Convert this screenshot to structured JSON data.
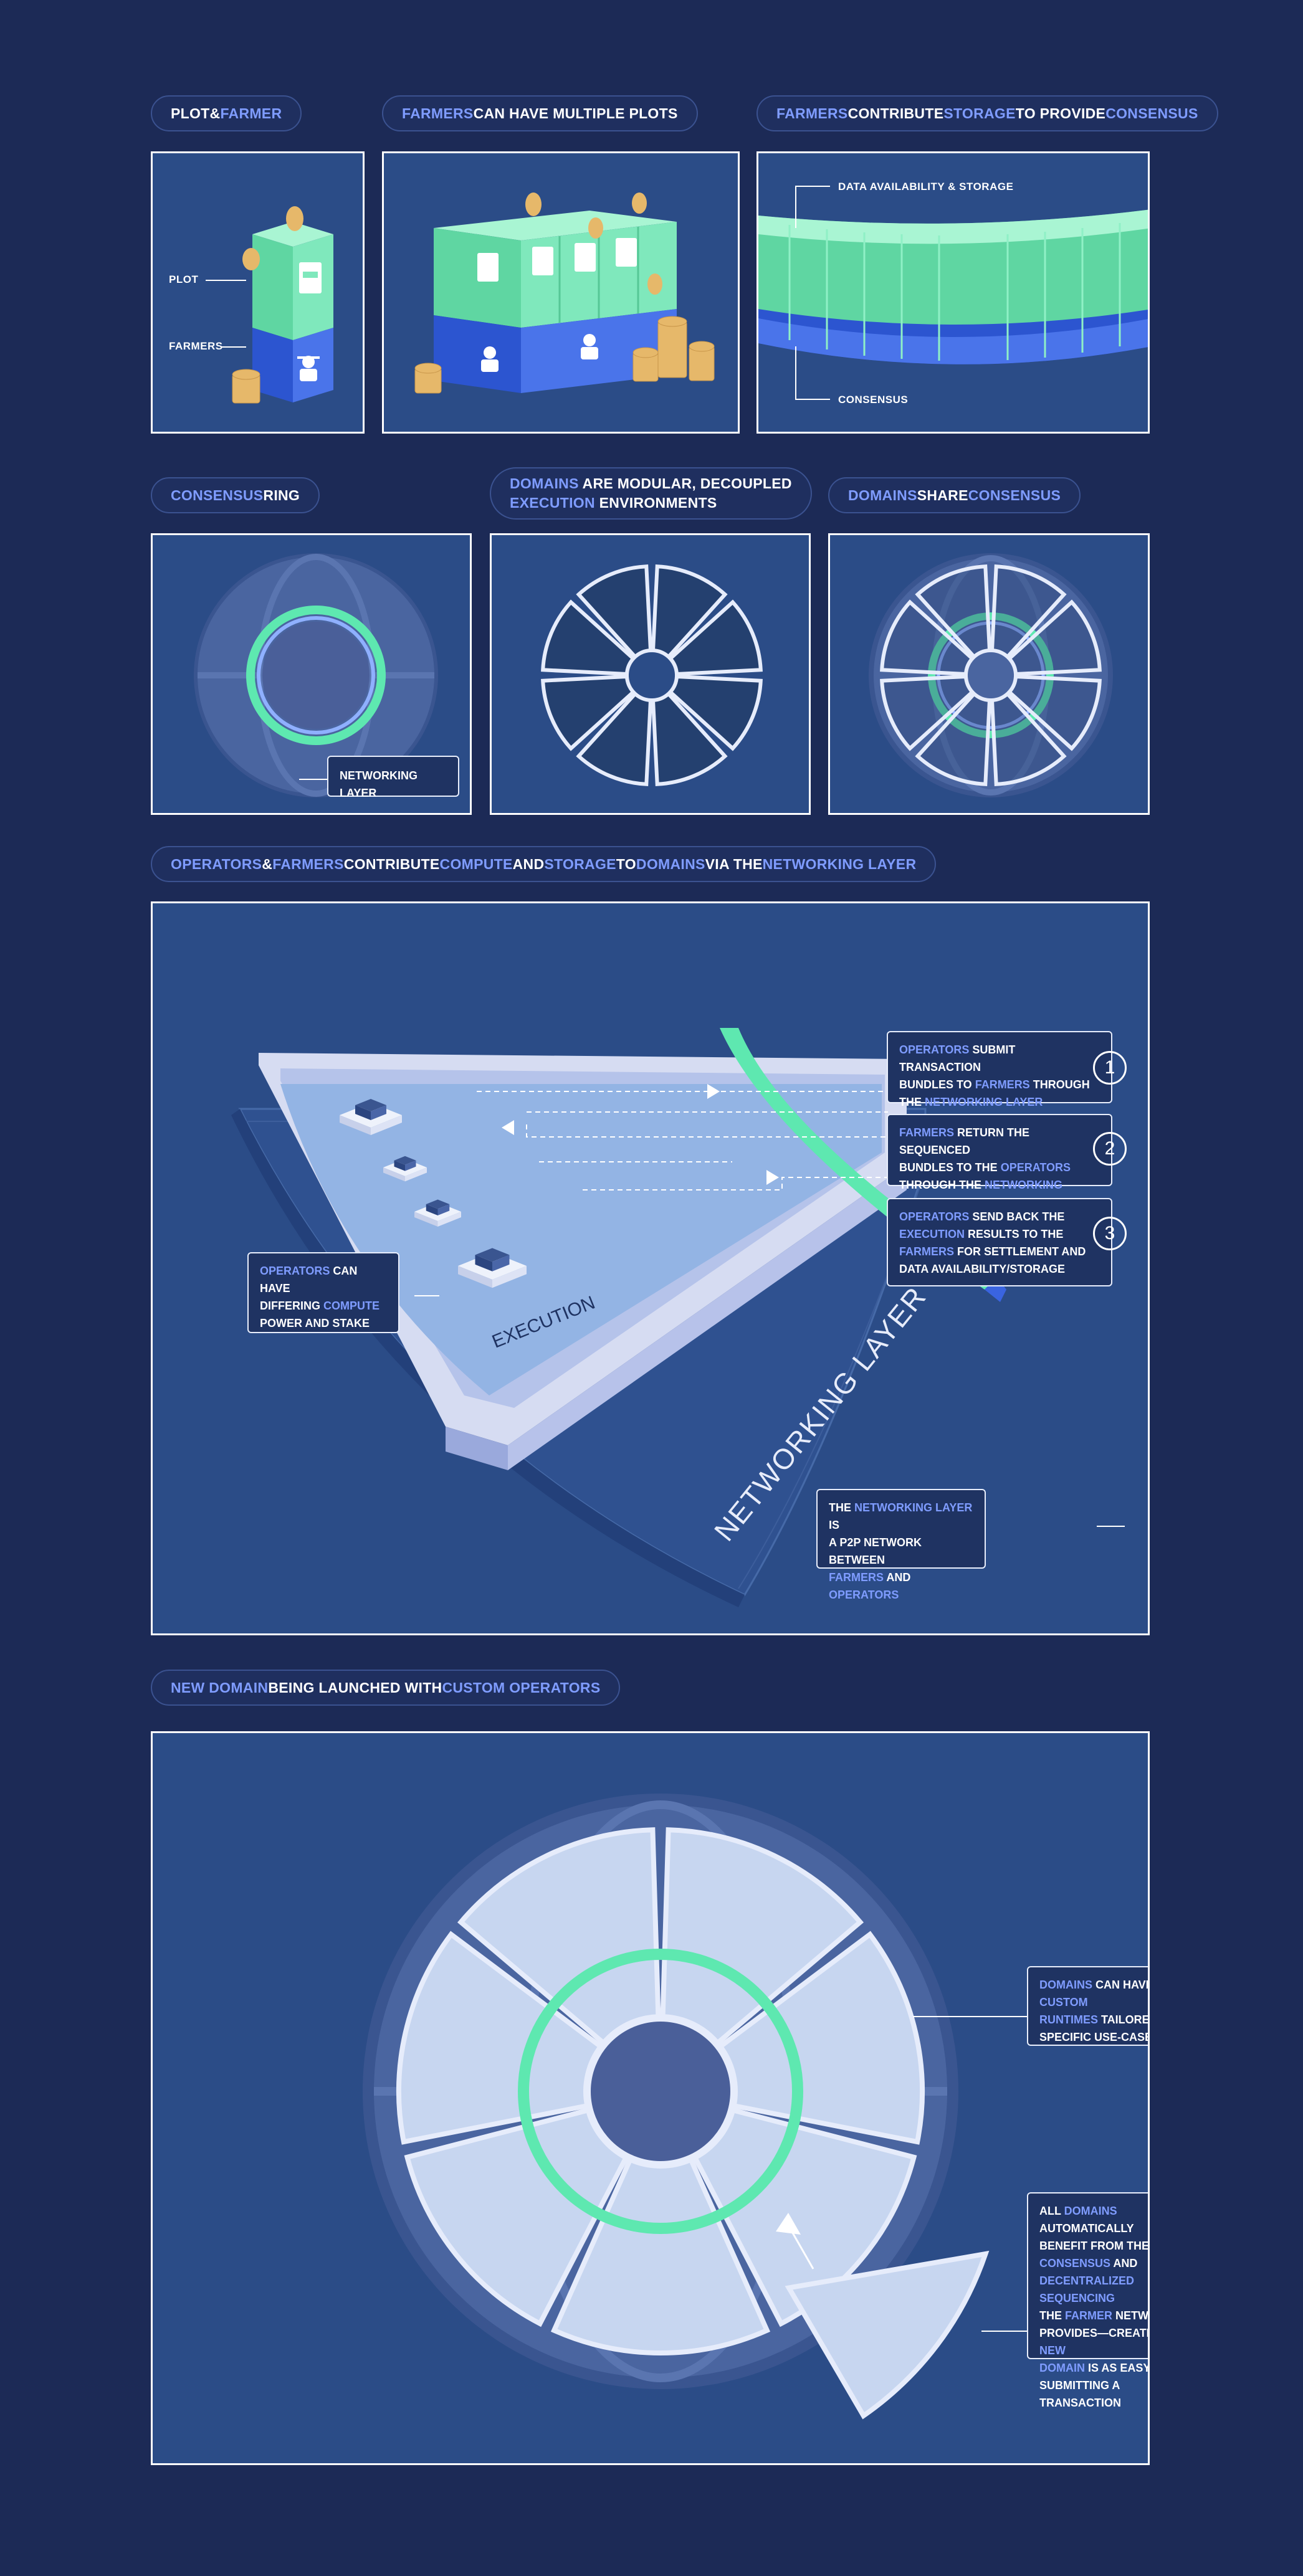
{
  "headers": {
    "plot_farmer": {
      "a": "PLOT",
      "b": " & ",
      "c": "FARMER"
    },
    "multiple_plots": {
      "a": "FARMERS",
      "b": " CAN HAVE MULTIPLE PLOTS"
    },
    "contribute_storage": {
      "a": "FARMERS",
      "b": " CONTRIBUTE ",
      "c": "STORAGE",
      "d": " TO PROVIDE ",
      "e": "CONSENSUS"
    },
    "consensus_ring": {
      "a": "CONSENSUS",
      "b": " RING"
    },
    "domains_modular": {
      "a": "DOMAINS",
      "b": " ARE MODULAR, DECOUPLED",
      "c": "EXECUTION",
      "d": " ENVIRONMENTS"
    },
    "domains_share": {
      "a": "DOMAINS",
      "b": " SHARE ",
      "c": "CONSENSUS"
    },
    "operators_farmers": {
      "a": "OPERATORS",
      "b": " & ",
      "c": "FARMERS",
      "d": " CONTRIBUTE ",
      "e": "COMPUTE",
      "f": " AND ",
      "g": "STORAGE",
      "h": " TO ",
      "i": "DOMAINS",
      "j": " VIA THE ",
      "k": "NETWORKING LAYER"
    },
    "new_domain": {
      "a": "NEW DOMAIN",
      "b": " BEING LAUNCHED WITH ",
      "c": "CUSTOM OPERATORS"
    }
  },
  "labels": {
    "plot": "PLOT",
    "farmers": "FARMERS",
    "data_availability": "DATA AVAILABILITY & STORAGE",
    "consensus": "CONSENSUS",
    "networking_layer_box": "NETWORKING LAYER",
    "execution": "EXECUTION",
    "networking_layer_big": "NETWORKING LAYER",
    "chip": "CPU"
  },
  "callouts": {
    "step1": {
      "number": "1",
      "l1a": "OPERATORS",
      "l1b": " SUBMIT TRANSACTION",
      "l2a": "BUNDLES TO ",
      "l2b": "FARMERS",
      "l2c": " THROUGH",
      "l3a": "THE ",
      "l3b": "NETWORKING LAYER"
    },
    "step2": {
      "number": "2",
      "l1a": "FARMERS",
      "l1b": " RETURN THE SEQUENCED",
      "l2a": "BUNDLES TO THE ",
      "l2b": "OPERATORS",
      "l3a": "THROUGH THE ",
      "l3b": "NETWORKING LAYER"
    },
    "step3": {
      "number": "3",
      "l1a": "OPERATORS",
      "l1b": " SEND BACK THE",
      "l2a": "EXECUTION",
      "l2b": " RESULTS TO THE",
      "l3a": "FARMERS",
      "l3b": " FOR SETTLEMENT AND",
      "l4": "DATA AVAILABILITY/STORAGE"
    },
    "operators_differ": {
      "l1a": "OPERATORS",
      "l1b": " CAN HAVE",
      "l2a": "DIFFERING ",
      "l2b": "COMPUTE",
      "l3a": "POWER",
      "l3b": " AND ",
      "l3c": "STAKE"
    },
    "networking_p2p": {
      "l1a": "THE ",
      "l1b": "NETWORKING LAYER",
      "l1c": " IS",
      "l2": "A P2P NETWORK BETWEEN",
      "l3a": "FARMERS",
      "l3b": " AND ",
      "l3c": "OPERATORS"
    },
    "custom_runtimes": {
      "l1a": "DOMAINS",
      "l1b": " CAN HAVE ",
      "l1c": "CUSTOM",
      "l2a": "RUNTIMES",
      "l2b": " TAILORED TO",
      "l3": "SPECIFIC USE-CASES"
    },
    "auto_benefit": {
      "l1a": "ALL ",
      "l1b": "DOMAINS",
      "l1c": " AUTOMATICALLY",
      "l2": "BENEFIT FROM THE",
      "l3a": "CONSENSUS",
      "l3b": " AND",
      "l4a": "DECENTRALIZED SEQUENCING",
      "l5a": "THE ",
      "l5b": "FARMER",
      "l5c": " NETWORK",
      "l6a": "PROVIDES—CREATING A ",
      "l6b": "NEW",
      "l7a": "DOMAIN",
      "l7b": " IS AS EASY AS",
      "l8": "SUBMITTING A TRANSACTION"
    }
  },
  "colors": {
    "background": "#1c2a56",
    "panel": "#2b4c87",
    "accent_blue": "#7f9cff",
    "plot_green": "#6fe3b0",
    "farmer_blue": "#3a64e0",
    "coin_gold": "#e6b86a",
    "ring_green": "#5ee8b0"
  }
}
